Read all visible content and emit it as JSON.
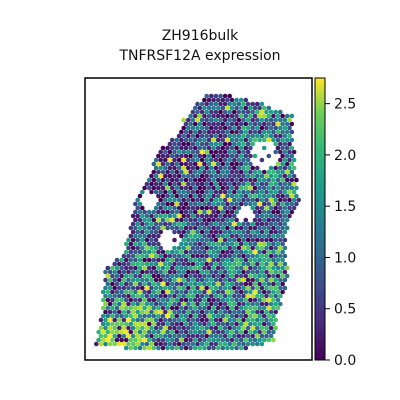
{
  "chart_data": {
    "type": "scatter",
    "subtype": "spatial-spot-heatmap",
    "title": "ZH916bulk",
    "subtitle": "TNFRSF12A expression",
    "xlabel": "",
    "ylabel": "",
    "axes_ticks": false,
    "grid": false,
    "colormap": "viridis",
    "colorbar": {
      "min": 0.0,
      "max": 2.75,
      "ticks": [
        0.0,
        0.5,
        1.0,
        1.5,
        2.0,
        2.5
      ],
      "tick_labels": [
        "0.0",
        "0.5",
        "1.0",
        "1.5",
        "2.0",
        "2.5"
      ],
      "placement": "right"
    },
    "colors": {
      "low": "#440154",
      "mid": "#21918c",
      "high": "#fde725",
      "frame": "#000000"
    }
  }
}
